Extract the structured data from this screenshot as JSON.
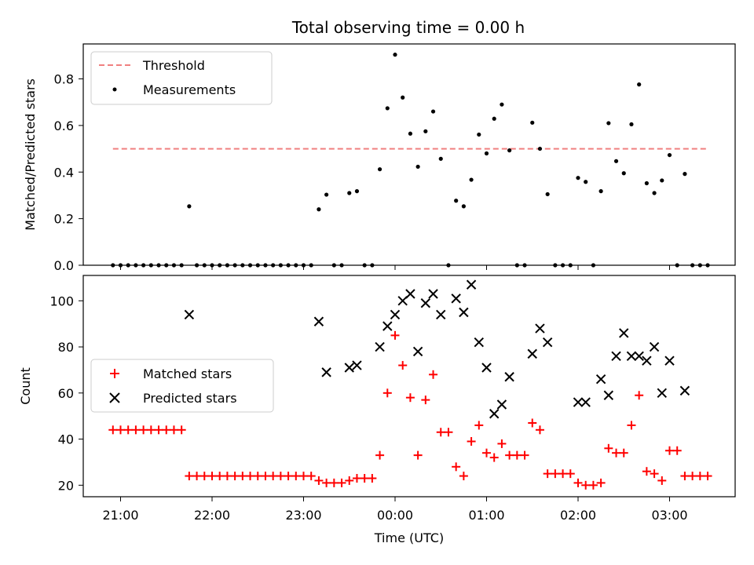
{
  "chart_data": [
    {
      "type": "scatter",
      "title": "Total observing time = 0.00 h",
      "xlabel": "",
      "ylabel": "Matched/Predicted stars",
      "ylim": [
        0,
        0.95
      ],
      "yticks": [
        "0.0",
        "0.2",
        "0.4",
        "0.6",
        "0.8"
      ],
      "legend_position": "upper-left",
      "threshold": {
        "name": "Threshold",
        "color": "#f08080",
        "y": 0.5,
        "x_range": [
          "20:55",
          "03:25"
        ]
      },
      "series": [
        {
          "name": "Measurements",
          "color": "#000000",
          "points": [
            [
              "20:55",
              0
            ],
            [
              "21:00",
              0
            ],
            [
              "21:05",
              0
            ],
            [
              "21:10",
              0
            ],
            [
              "21:15",
              0
            ],
            [
              "21:20",
              0
            ],
            [
              "21:25",
              0
            ],
            [
              "21:30",
              0
            ],
            [
              "21:35",
              0
            ],
            [
              "21:40",
              0
            ],
            [
              "21:45",
              0.253
            ],
            [
              "21:50",
              0
            ],
            [
              "21:55",
              0
            ],
            [
              "22:00",
              0
            ],
            [
              "22:05",
              0
            ],
            [
              "22:10",
              0
            ],
            [
              "22:15",
              0
            ],
            [
              "22:20",
              0
            ],
            [
              "22:25",
              0
            ],
            [
              "22:30",
              0
            ],
            [
              "22:35",
              0
            ],
            [
              "22:40",
              0
            ],
            [
              "22:45",
              0
            ],
            [
              "22:50",
              0
            ],
            [
              "22:55",
              0
            ],
            [
              "23:00",
              0
            ],
            [
              "23:05",
              0
            ],
            [
              "23:10",
              0.24
            ],
            [
              "23:15",
              0.303
            ],
            [
              "23:20",
              0
            ],
            [
              "23:25",
              0
            ],
            [
              "23:30",
              0.31
            ],
            [
              "23:35",
              0.318
            ],
            [
              "23:40",
              0
            ],
            [
              "23:45",
              0
            ],
            [
              "23:50",
              0.412
            ],
            [
              "23:55",
              0.674
            ],
            [
              "00:00",
              0.904
            ],
            [
              "00:05",
              0.72
            ],
            [
              "00:10",
              0.565
            ],
            [
              "00:15",
              0.423
            ],
            [
              "00:20",
              0.575
            ],
            [
              "00:25",
              0.66
            ],
            [
              "00:30",
              0.457
            ],
            [
              "00:35",
              0
            ],
            [
              "00:40",
              0.277
            ],
            [
              "00:45",
              0.253
            ],
            [
              "00:50",
              0.367
            ],
            [
              "00:55",
              0.561
            ],
            [
              "01:00",
              0.48
            ],
            [
              "01:05",
              0.629
            ],
            [
              "01:10",
              0.69
            ],
            [
              "01:15",
              0.493
            ],
            [
              "01:20",
              0
            ],
            [
              "01:25",
              0
            ],
            [
              "01:30",
              0.612
            ],
            [
              "01:35",
              0.5
            ],
            [
              "01:40",
              0.305
            ],
            [
              "01:45",
              0
            ],
            [
              "01:50",
              0
            ],
            [
              "01:55",
              0
            ],
            [
              "02:00",
              0.375
            ],
            [
              "02:05",
              0.358
            ],
            [
              "02:10",
              0
            ],
            [
              "02:15",
              0.318
            ],
            [
              "02:20",
              0.61
            ],
            [
              "02:25",
              0.447
            ],
            [
              "02:30",
              0.395
            ],
            [
              "02:35",
              0.605
            ],
            [
              "02:40",
              0.776
            ],
            [
              "02:45",
              0.352
            ],
            [
              "02:50",
              0.31
            ],
            [
              "02:55",
              0.364
            ],
            [
              "03:00",
              0.473
            ],
            [
              "03:05",
              0
            ],
            [
              "03:10",
              0.392
            ],
            [
              "03:15",
              0
            ],
            [
              "03:20",
              0
            ],
            [
              "03:25",
              0
            ]
          ]
        }
      ]
    },
    {
      "type": "scatter",
      "title": "",
      "xlabel": "Time (UTC)",
      "ylabel": "Count",
      "ylim": [
        15,
        111
      ],
      "yticks": [
        "20",
        "40",
        "60",
        "80",
        "100"
      ],
      "xticks": [
        "21:00",
        "22:00",
        "23:00",
        "00:00",
        "01:00",
        "02:00",
        "03:00"
      ],
      "legend_position": "center-left",
      "series": [
        {
          "name": "Matched stars",
          "color": "#ff0000",
          "marker": "plus",
          "points": [
            [
              "20:55",
              44
            ],
            [
              "21:00",
              44
            ],
            [
              "21:05",
              44
            ],
            [
              "21:10",
              44
            ],
            [
              "21:15",
              44
            ],
            [
              "21:20",
              44
            ],
            [
              "21:25",
              44
            ],
            [
              "21:30",
              44
            ],
            [
              "21:35",
              44
            ],
            [
              "21:40",
              44
            ],
            [
              "21:45",
              24
            ],
            [
              "21:50",
              24
            ],
            [
              "21:55",
              24
            ],
            [
              "22:00",
              24
            ],
            [
              "22:05",
              24
            ],
            [
              "22:10",
              24
            ],
            [
              "22:15",
              24
            ],
            [
              "22:20",
              24
            ],
            [
              "22:25",
              24
            ],
            [
              "22:30",
              24
            ],
            [
              "22:35",
              24
            ],
            [
              "22:40",
              24
            ],
            [
              "22:45",
              24
            ],
            [
              "22:50",
              24
            ],
            [
              "22:55",
              24
            ],
            [
              "23:00",
              24
            ],
            [
              "23:05",
              24
            ],
            [
              "23:10",
              22
            ],
            [
              "23:15",
              21
            ],
            [
              "23:20",
              21
            ],
            [
              "23:25",
              21
            ],
            [
              "23:30",
              22
            ],
            [
              "23:35",
              23
            ],
            [
              "23:40",
              23
            ],
            [
              "23:45",
              23
            ],
            [
              "23:50",
              33
            ],
            [
              "23:55",
              60
            ],
            [
              "00:00",
              85
            ],
            [
              "00:05",
              72
            ],
            [
              "00:10",
              58
            ],
            [
              "00:15",
              33
            ],
            [
              "00:20",
              57
            ],
            [
              "00:25",
              68
            ],
            [
              "00:30",
              43
            ],
            [
              "00:35",
              43
            ],
            [
              "00:40",
              28
            ],
            [
              "00:45",
              24
            ],
            [
              "00:50",
              39
            ],
            [
              "00:55",
              46
            ],
            [
              "01:00",
              34
            ],
            [
              "01:05",
              32
            ],
            [
              "01:10",
              38
            ],
            [
              "01:15",
              33
            ],
            [
              "01:20",
              33
            ],
            [
              "01:25",
              33
            ],
            [
              "01:30",
              47
            ],
            [
              "01:35",
              44
            ],
            [
              "01:40",
              25
            ],
            [
              "01:45",
              25
            ],
            [
              "01:50",
              25
            ],
            [
              "01:55",
              25
            ],
            [
              "02:00",
              21
            ],
            [
              "02:05",
              20
            ],
            [
              "02:10",
              20
            ],
            [
              "02:15",
              21
            ],
            [
              "02:20",
              36
            ],
            [
              "02:25",
              34
            ],
            [
              "02:30",
              34
            ],
            [
              "02:35",
              46
            ],
            [
              "02:40",
              59
            ],
            [
              "02:45",
              26
            ],
            [
              "02:50",
              25
            ],
            [
              "02:55",
              22
            ],
            [
              "03:00",
              35
            ],
            [
              "03:05",
              35
            ],
            [
              "03:10",
              24
            ],
            [
              "03:15",
              24
            ],
            [
              "03:20",
              24
            ],
            [
              "03:25",
              24
            ]
          ]
        },
        {
          "name": "Predicted stars",
          "color": "#000000",
          "marker": "x",
          "points": [
            [
              "21:45",
              94
            ],
            [
              "23:10",
              91
            ],
            [
              "23:15",
              69
            ],
            [
              "23:30",
              71
            ],
            [
              "23:35",
              72
            ],
            [
              "23:50",
              80
            ],
            [
              "23:55",
              89
            ],
            [
              "00:00",
              94
            ],
            [
              "00:05",
              100
            ],
            [
              "00:10",
              103
            ],
            [
              "00:15",
              78
            ],
            [
              "00:20",
              99
            ],
            [
              "00:25",
              103
            ],
            [
              "00:30",
              94
            ],
            [
              "00:40",
              101
            ],
            [
              "00:45",
              95
            ],
            [
              "00:50",
              107
            ],
            [
              "00:55",
              82
            ],
            [
              "01:00",
              71
            ],
            [
              "01:05",
              51
            ],
            [
              "01:10",
              55
            ],
            [
              "01:15",
              67
            ],
            [
              "01:30",
              77
            ],
            [
              "01:35",
              88
            ],
            [
              "01:40",
              82
            ],
            [
              "02:00",
              56
            ],
            [
              "02:05",
              56
            ],
            [
              "02:15",
              66
            ],
            [
              "02:20",
              59
            ],
            [
              "02:25",
              76
            ],
            [
              "02:30",
              86
            ],
            [
              "02:35",
              76
            ],
            [
              "02:40",
              76
            ],
            [
              "02:45",
              74
            ],
            [
              "02:50",
              80
            ],
            [
              "02:55",
              60
            ],
            [
              "03:00",
              74
            ],
            [
              "03:10",
              61
            ]
          ]
        }
      ]
    }
  ]
}
